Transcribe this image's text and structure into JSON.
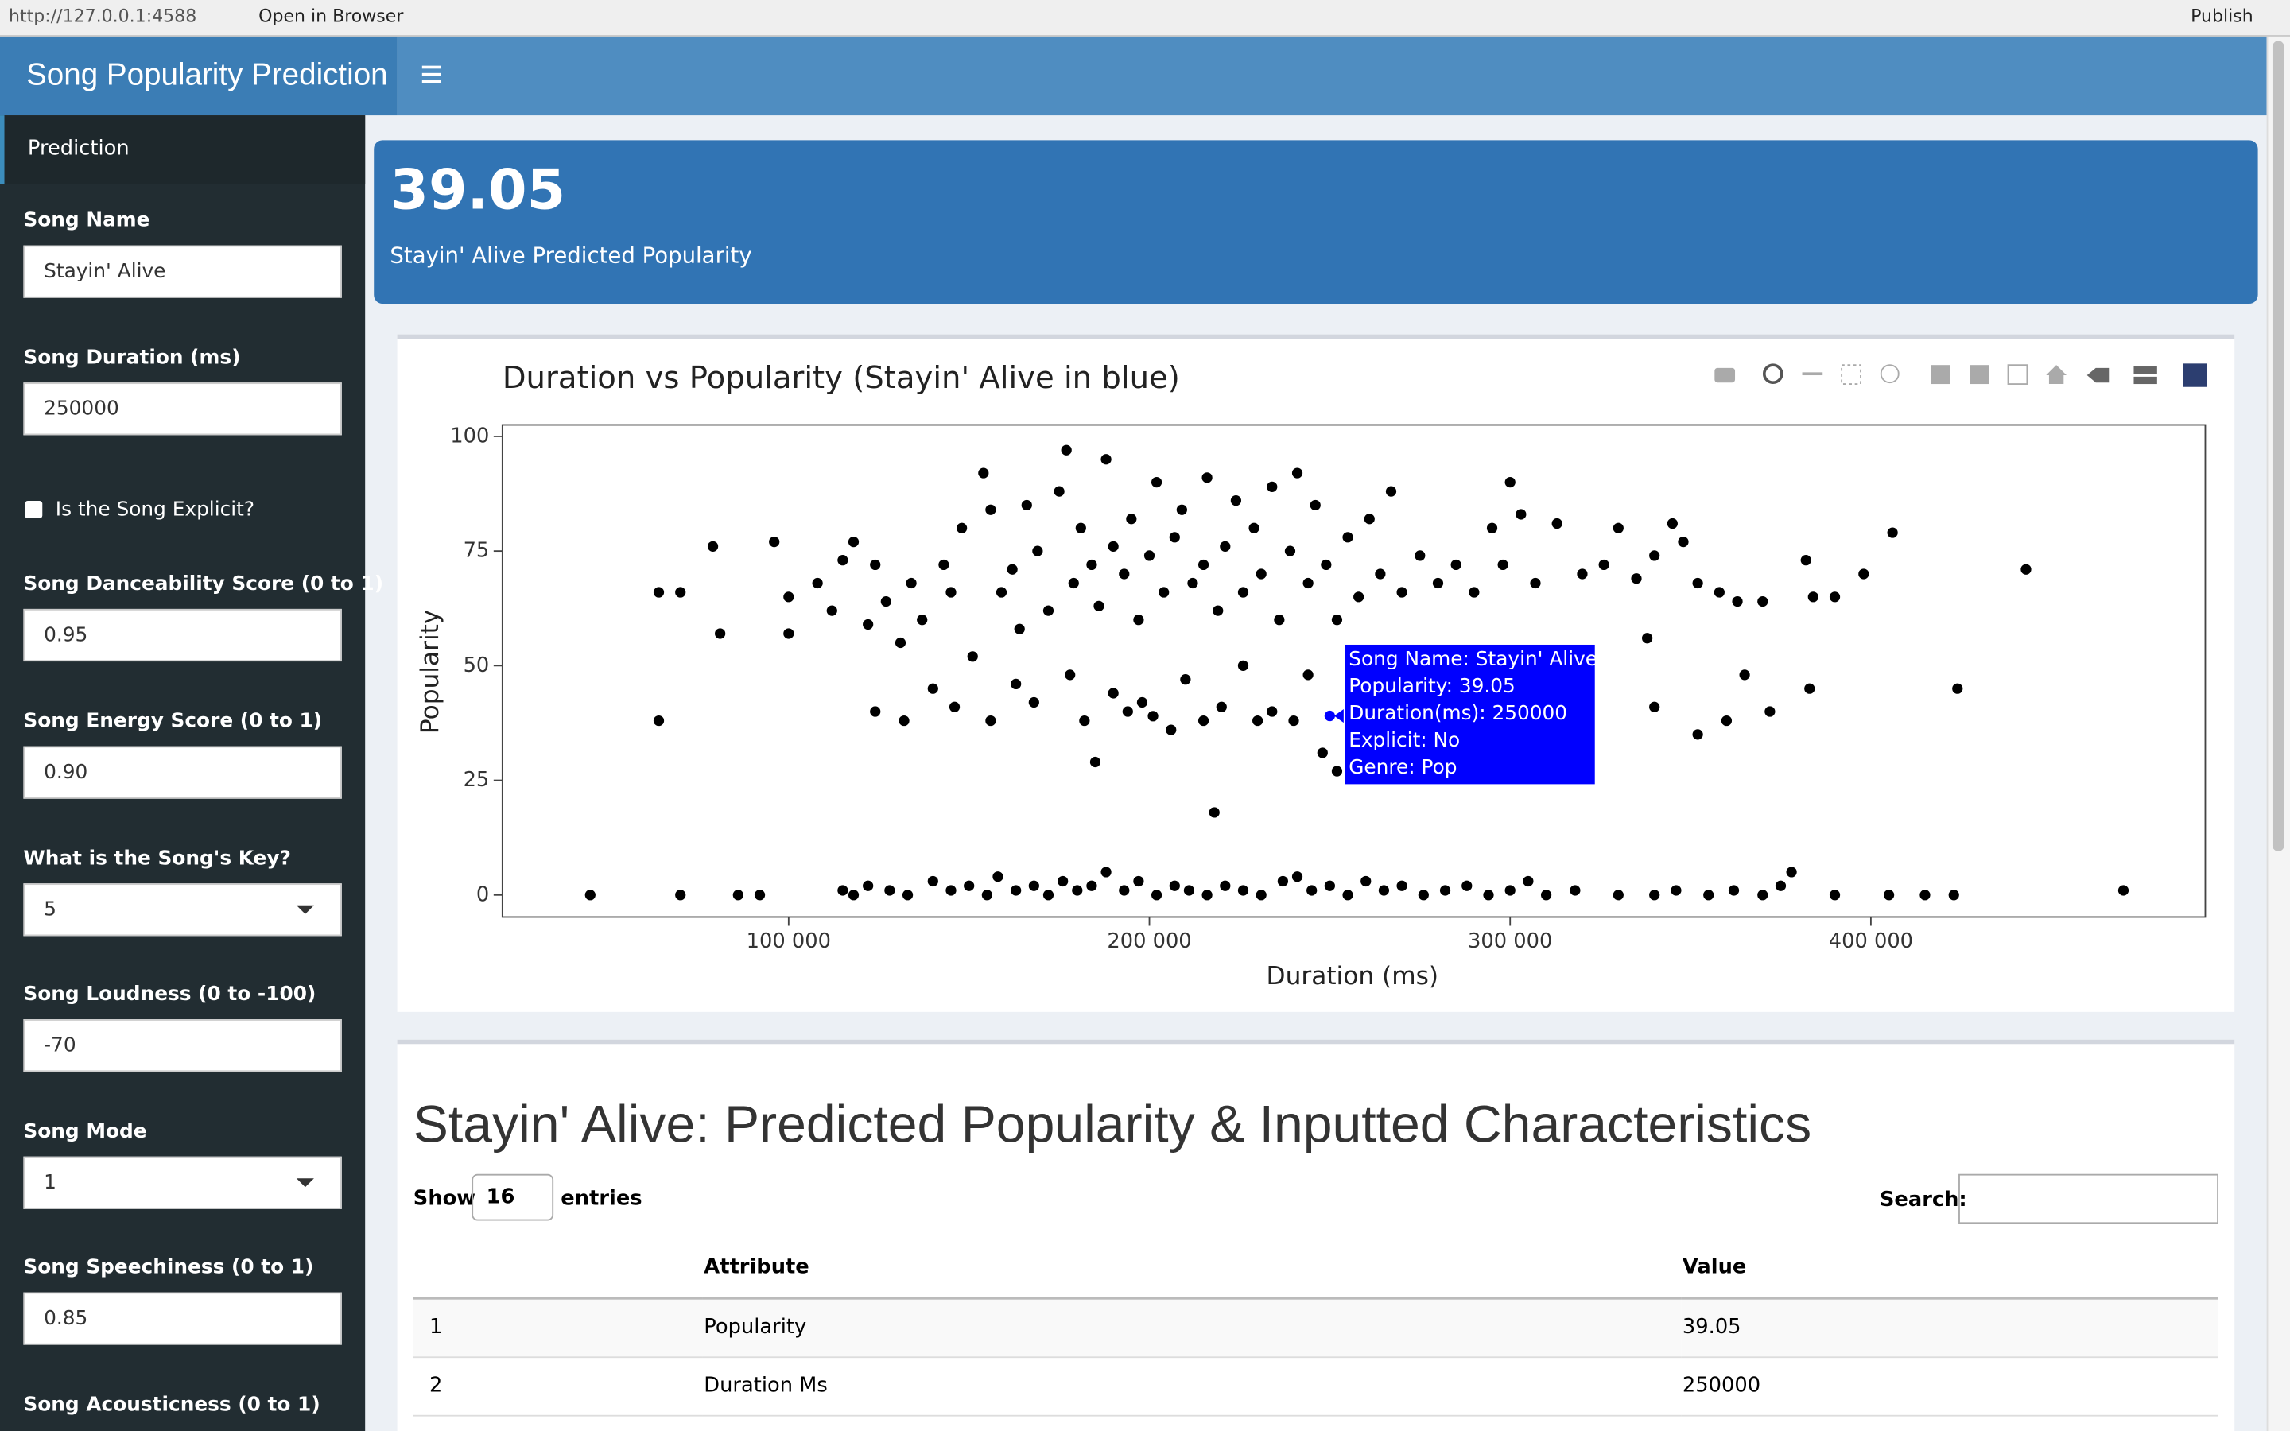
{
  "browser": {
    "url": "http://127.0.0.1:4588",
    "open": "Open in Browser",
    "publish": "Publish"
  },
  "header": {
    "title": "Song Popularity Prediction"
  },
  "sidebar": {
    "menu": "Prediction",
    "fields": [
      {
        "label": "Song Name",
        "value": "Stayin' Alive"
      },
      {
        "label": "Song Duration (ms)",
        "value": "250000"
      },
      {
        "label": "Is the Song Explicit?"
      },
      {
        "label": "Song Danceability Score (0 to 1)",
        "value": "0.95"
      },
      {
        "label": "Song Energy Score (0 to 1)",
        "value": "0.90"
      },
      {
        "label": "What is the Song's Key?",
        "value": "5"
      },
      {
        "label": "Song Loudness (0 to -100)",
        "value": "-70"
      },
      {
        "label": "Song Mode",
        "value": "1"
      },
      {
        "label": "Song Speechiness (0 to 1)",
        "value": "0.85"
      },
      {
        "label": "Song Acousticness (0 to 1)"
      }
    ]
  },
  "value_box": {
    "value": "39.05",
    "subtitle": "Stayin' Alive Predicted Popularity"
  },
  "chart_data": {
    "type": "scatter",
    "title": "Duration vs Popularity (Stayin' Alive in blue)",
    "x_label": "Duration (ms)",
    "y_label": "Popularity",
    "color": "#000000",
    "x": [
      45000,
      70000,
      86000,
      92000,
      115000,
      118000,
      122000,
      128000,
      133000,
      140000,
      145000,
      150000,
      155000,
      158000,
      163000,
      168000,
      172000,
      176000,
      180000,
      184000,
      188000,
      193000,
      197000,
      202000,
      207000,
      211000,
      216000,
      221000,
      226000,
      231000,
      237000,
      241000,
      245000,
      250000,
      255000,
      260000,
      265000,
      270000,
      276000,
      282000,
      288000,
      294000,
      300000,
      305000,
      310000,
      318000,
      330000,
      340000,
      346000,
      355000,
      362000,
      370000,
      375000,
      378000,
      390000,
      405000,
      415000,
      423000,
      470000,
      64000,
      70000,
      79000,
      81000,
      96000,
      100000,
      100000,
      108000,
      112000,
      115000,
      118000,
      122000,
      124000,
      127000,
      131000,
      134000,
      137000,
      140000,
      143000,
      145000,
      148000,
      151000,
      154000,
      156000,
      159000,
      162000,
      164000,
      166000,
      169000,
      172000,
      175000,
      177000,
      179000,
      181000,
      184000,
      186000,
      188000,
      190000,
      193000,
      195000,
      197000,
      200000,
      202000,
      204000,
      207000,
      209000,
      212000,
      215000,
      216000,
      219000,
      221000,
      224000,
      226000,
      229000,
      231000,
      234000,
      236000,
      239000,
      241000,
      244000,
      246000,
      249000,
      252000,
      255000,
      258000,
      261000,
      264000,
      267000,
      270000,
      275000,
      280000,
      285000,
      290000,
      295000,
      298000,
      300000,
      303000,
      307000,
      313000,
      320000,
      326000,
      330000,
      335000,
      338000,
      340000,
      345000,
      348000,
      352000,
      358000,
      363000,
      370000,
      382000,
      384000,
      390000,
      398000,
      406000,
      443000,
      64000,
      124000,
      132000,
      146000,
      156000,
      163000,
      168000,
      178000,
      182000,
      185000,
      190000,
      194000,
      198000,
      201000,
      206000,
      210000,
      215000,
      218000,
      220000,
      226000,
      230000,
      234000,
      240000,
      244000,
      248000,
      252000,
      256000,
      305000,
      322000,
      340000,
      352000,
      360000,
      365000,
      372000,
      383000,
      424000
    ],
    "values": [
      0,
      0,
      0,
      0,
      1,
      0,
      2,
      1,
      0,
      3,
      1,
      2,
      0,
      4,
      1,
      2,
      0,
      3,
      1,
      2,
      5,
      1,
      3,
      0,
      2,
      1,
      0,
      2,
      1,
      0,
      3,
      4,
      1,
      2,
      0,
      3,
      1,
      2,
      0,
      1,
      2,
      0,
      1,
      3,
      0,
      1,
      0,
      0,
      1,
      0,
      1,
      0,
      2,
      5,
      0,
      0,
      0,
      0,
      1,
      66,
      66,
      76,
      57,
      77,
      65,
      57,
      68,
      62,
      73,
      77,
      59,
      72,
      64,
      55,
      68,
      60,
      45,
      72,
      66,
      80,
      52,
      92,
      84,
      66,
      71,
      58,
      85,
      75,
      62,
      88,
      97,
      68,
      80,
      72,
      63,
      95,
      76,
      70,
      82,
      60,
      74,
      90,
      66,
      78,
      84,
      68,
      72,
      91,
      62,
      76,
      86,
      66,
      80,
      70,
      89,
      60,
      75,
      92,
      68,
      85,
      72,
      60,
      78,
      65,
      82,
      70,
      88,
      66,
      74,
      68,
      72,
      66,
      80,
      72,
      90,
      83,
      68,
      81,
      70,
      72,
      80,
      69,
      56,
      74,
      81,
      77,
      68,
      66,
      64,
      64,
      73,
      65,
      65,
      70,
      79,
      71,
      38,
      40,
      38,
      41,
      38,
      46,
      42,
      48,
      38,
      29,
      44,
      40,
      42,
      39,
      36,
      47,
      38,
      18,
      41,
      50,
      38,
      40,
      38,
      48,
      31,
      27,
      42,
      40,
      40,
      41,
      35,
      38,
      48,
      40,
      45,
      45
    ],
    "highlight": {
      "x": 250000,
      "value": 39.05,
      "color": "#0000ff"
    },
    "tooltip": [
      "Song Name:  Stayin' Alive",
      "Popularity:  39.05",
      "Duration(ms):  250000",
      "Explicit:  No",
      "Genre:  Pop"
    ],
    "xlim": [
      20650,
      492700
    ],
    "ylim": [
      -4.8,
      102.5
    ],
    "xticks": [
      {
        "value": 100000,
        "label": "100 000"
      },
      {
        "value": 200000,
        "label": "200 000"
      },
      {
        "value": 300000,
        "label": "300 000"
      },
      {
        "value": 400000,
        "label": "400 000"
      }
    ],
    "yticks": [
      0,
      25,
      50,
      75,
      100
    ],
    "grid": false
  },
  "table": {
    "title": "Stayin' Alive: Predicted Popularity & Inputted Characteristics",
    "show": "Show",
    "length": "16",
    "entries": "entries",
    "search": "Search:",
    "columns": [
      "Attribute",
      "Value"
    ],
    "rows": [
      [
        "1",
        "Popularity",
        "39.05"
      ],
      [
        "2",
        "Duration Ms",
        "250000"
      ]
    ]
  }
}
